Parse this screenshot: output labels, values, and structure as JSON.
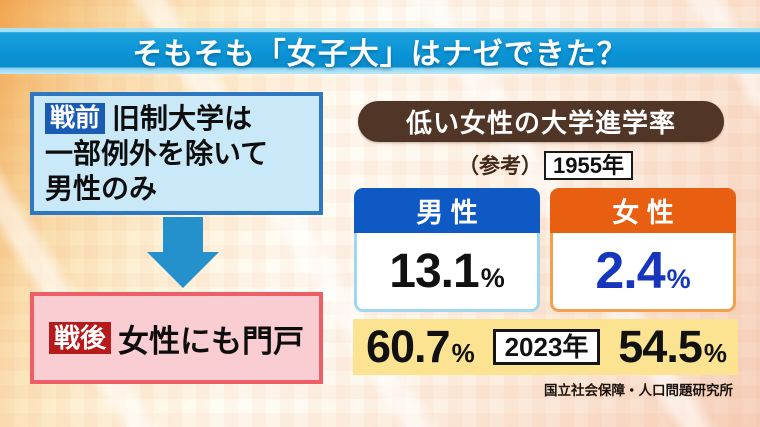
{
  "header": {
    "title": "そもそも「女子大」はナゼできた？"
  },
  "flow": {
    "prewar": {
      "badge": "戦前",
      "line1": "旧制大学は",
      "line2": "一部例外を除いて",
      "line3": "男性のみ"
    },
    "postwar": {
      "badge": "戦後",
      "text": "女性にも門戸"
    }
  },
  "stats": {
    "heading": "低い女性の大学進学率",
    "reference_label": "（参考）",
    "year_old": "1955年",
    "male": {
      "label": "男 性",
      "value": "13.1",
      "unit": "%"
    },
    "female": {
      "label": "女 性",
      "value": "2.4",
      "unit": "%"
    },
    "recent": {
      "male_value": "60.7",
      "male_unit": "%",
      "year": "2023年",
      "female_value": "54.5",
      "female_unit": "%"
    },
    "source": "国立社会保障・人口問題研究所"
  },
  "colors": {
    "title_bar_blue": "#0a94d6",
    "male_header_blue": "#0f59c4",
    "female_header_orange": "#e85f12",
    "prewar_badge_blue": "#1a5cb5",
    "postwar_badge_red": "#b61a1a",
    "heading_pill_brown": "#513527",
    "band_yellow": "#fbe391",
    "female_value_blue": "#1636bd",
    "arrow_blue": "#2491cc"
  },
  "chart_data": {
    "type": "table",
    "title": "低い女性の大学進学率",
    "categories": [
      "男性",
      "女性"
    ],
    "series": [
      {
        "name": "1955年",
        "values": [
          13.1,
          2.4
        ]
      },
      {
        "name": "2023年",
        "values": [
          60.7,
          54.5
        ]
      }
    ],
    "unit": "%",
    "source": "国立社会保障・人口問題研究所"
  }
}
